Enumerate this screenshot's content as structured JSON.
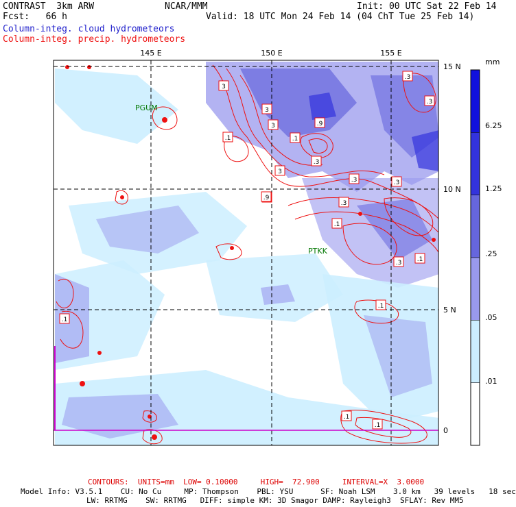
{
  "header": {
    "model": "CONTRAST  3km ARW",
    "fcst": "Fcst:   66 h",
    "center": "NCAR/MMM",
    "init": "Init: 00 UTC Sat 22 Feb 14",
    "valid": "Valid: 18 UTC Mon 24 Feb 14 (04 ChT Tue 25 Feb 14)",
    "field1": "Column-integ. cloud hydrometeors",
    "field2": "Column-integ. precip. hydrometeors"
  },
  "colors": {
    "cloud_text": "#2222cc",
    "precip": "#ee1111",
    "footer_red": "#dd0000",
    "station": "#007700",
    "boundary": "#cc00cc"
  },
  "map": {
    "lon_labels": [
      "145 E",
      "150 E",
      "155 E"
    ],
    "lat_labels": [
      "15 N",
      "10 N",
      "5 N",
      "0"
    ],
    "stations": [
      "PGUM",
      "PTKK"
    ]
  },
  "legend": {
    "units": "mm",
    "labels": [
      "6.25",
      "1.25",
      ".25",
      ".05",
      ".01"
    ],
    "colors": [
      "#1111dd",
      "#3333dd",
      "#6666dd",
      "#9999ee",
      "#cceeff",
      "#ffffff"
    ]
  },
  "contour_labels": [
    "3",
    "3",
    "3",
    "3",
    ".1",
    ".9",
    ".1",
    ".3",
    ".1",
    ".3",
    ".3",
    ".3",
    ".3",
    ".3",
    ".1",
    ".1",
    ".3",
    ".1",
    ".1",
    ".1",
    ".1",
    ".9"
  ],
  "footer": {
    "contours": "CONTOURS:  UNITS=mm  LOW= 0.10000     HIGH=  72.900     INTERVAL=X  3.0000",
    "line1": "Model Info: V3.5.1    CU: No Cu     MP: Thompson    PBL: YSU      SF: Noah LSM    3.0 km   39 levels   18 sec",
    "line2": "LW: RRTMG    SW: RRTMG   DIFF: simple KM: 3D Smagor DAMP: Rayleigh3  SFLAY: Rev MM5"
  }
}
